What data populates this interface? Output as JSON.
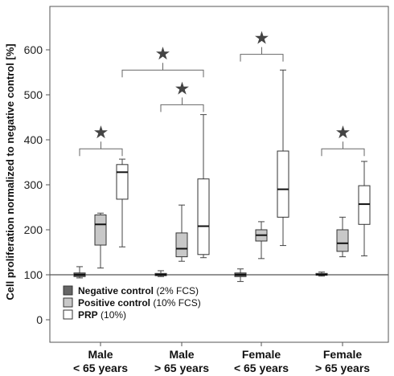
{
  "chart_data": {
    "type": "box",
    "ylabel": "Cell proliferation normalized to negative control [%]",
    "ylim": [
      -50,
      660
    ],
    "yticks": [
      0,
      100,
      200,
      300,
      400,
      500,
      600
    ],
    "reference_line": 100,
    "categories": [
      {
        "line1": "Male",
        "line2": "< 65 years"
      },
      {
        "line1": "Male",
        "line2": "> 65 years"
      },
      {
        "line1": "Female",
        "line2": "< 65 years"
      },
      {
        "line1": "Female",
        "line2": "> 65 years"
      }
    ],
    "series": [
      {
        "name": "Negative control",
        "name_suffix": "(2% FCS)",
        "color": "#666666",
        "boxes": [
          {
            "min": 93,
            "q1": 96,
            "median": 100,
            "q3": 104,
            "max": 118
          },
          {
            "min": 96,
            "q1": 98,
            "median": 100,
            "q3": 103,
            "max": 109
          },
          {
            "min": 85,
            "q1": 96,
            "median": 100,
            "q3": 104,
            "max": 113
          },
          {
            "min": 97,
            "q1": 99,
            "median": 100,
            "q3": 103,
            "max": 106
          }
        ]
      },
      {
        "name": "Positive control",
        "name_suffix": "(10% FCS)",
        "color": "#c8c8c8",
        "boxes": [
          {
            "min": 115,
            "q1": 166,
            "median": 212,
            "q3": 233,
            "max": 237
          },
          {
            "min": 130,
            "q1": 140,
            "median": 158,
            "q3": 193,
            "max": 255
          },
          {
            "min": 136,
            "q1": 175,
            "median": 188,
            "q3": 200,
            "max": 218
          },
          {
            "min": 140,
            "q1": 152,
            "median": 170,
            "q3": 200,
            "max": 228
          }
        ]
      },
      {
        "name": "PRP",
        "name_suffix": "(10%)",
        "color": "#ffffff",
        "boxes": [
          {
            "min": 162,
            "q1": 268,
            "median": 328,
            "q3": 345,
            "max": 357
          },
          {
            "min": 138,
            "q1": 145,
            "median": 208,
            "q3": 313,
            "max": 456
          },
          {
            "min": 165,
            "q1": 228,
            "median": 290,
            "q3": 375,
            "max": 555
          },
          {
            "min": 142,
            "q1": 212,
            "median": 257,
            "q3": 298,
            "max": 352
          }
        ]
      }
    ],
    "significance": [
      {
        "from": [
          0,
          0
        ],
        "to": [
          0,
          2
        ],
        "y": 380,
        "marker": "★"
      },
      {
        "from": [
          0,
          2
        ],
        "to": [
          1,
          2
        ],
        "y": 555,
        "marker": "★"
      },
      {
        "from": [
          1,
          0
        ],
        "to": [
          1,
          2
        ],
        "y": 478,
        "marker": "★"
      },
      {
        "from": [
          2,
          0
        ],
        "to": [
          2,
          2
        ],
        "y": 590,
        "marker": "★"
      },
      {
        "from": [
          3,
          0
        ],
        "to": [
          3,
          2
        ],
        "y": 380,
        "marker": "★"
      }
    ],
    "legend_position": "bottom-left"
  }
}
